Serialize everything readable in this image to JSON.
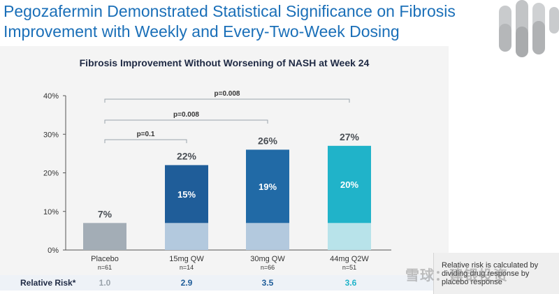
{
  "slide": {
    "title_line1": "Pegozafermin Demonstrated Statistical Significance on Fibrosis",
    "title_line2": "Improvement with Weekly and Every-Two-Week Dosing"
  },
  "colors": {
    "title": "#1a6fb8",
    "placebo": "#a3adb6",
    "dark_blue": "#1f5d99",
    "med_blue": "#216aa6",
    "light_base_blue": "#b3c9de",
    "teal": "#20b3c9",
    "light_teal": "#b8e3ea"
  },
  "chart_data": {
    "type": "bar",
    "title": "Fibrosis Improvement Without Worsening of NASH at Week 24",
    "categories": [
      "Placebo",
      "15mg QW",
      "30mg QW",
      "44mg Q2W"
    ],
    "n_labels": [
      "n=61",
      "n=14",
      "n=66",
      "n=51"
    ],
    "totals": [
      7,
      22,
      26,
      27
    ],
    "total_labels": [
      "7%",
      "22%",
      "26%",
      "27%"
    ],
    "placebo_adjusted": [
      null,
      15,
      19,
      20
    ],
    "placebo_adjusted_labels": [
      "",
      "15%",
      "19%",
      "20%"
    ],
    "placebo_base": 7,
    "ylim": [
      0,
      40
    ],
    "yticks": [
      0,
      10,
      20,
      30,
      40
    ],
    "ytick_labels": [
      "0%",
      "10%",
      "20%",
      "30%",
      "40%"
    ],
    "comparisons": [
      {
        "from": 0,
        "to": 1,
        "label": "p=0.1"
      },
      {
        "from": 0,
        "to": 2,
        "label": "p=0.008"
      },
      {
        "from": 0,
        "to": 3,
        "label": "p=0.008"
      }
    ]
  },
  "relative_risk": {
    "label": "Relative Risk*",
    "values": [
      "1.0",
      "2.9",
      "3.5",
      "3.6"
    ]
  },
  "note": {
    "text": "Relative risk is calculated by dividing drug response by placebo response"
  },
  "watermark": "雪球：建银投资"
}
